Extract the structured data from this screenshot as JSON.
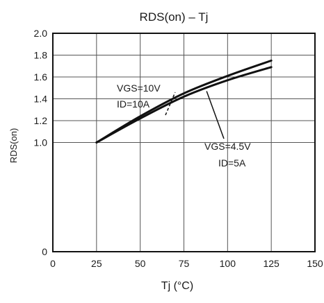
{
  "chart_data": {
    "type": "line",
    "title": "RDS(on)  –  Tj",
    "xlabel": "Tj   (°C)",
    "ylabel": "RDS(on)",
    "xlim": [
      0,
      150
    ],
    "ylim": [
      0,
      2.0
    ],
    "x_ticks": [
      0,
      25,
      50,
      75,
      100,
      125,
      150
    ],
    "x_tick_labels": [
      "0",
      "25",
      "50",
      "75",
      "100",
      "125",
      "150"
    ],
    "y_ticks": [
      0,
      1.0,
      1.2,
      1.4,
      1.6,
      1.8,
      2.0
    ],
    "y_tick_labels": [
      "0",
      "1.0",
      "1.2",
      "1.4",
      "1.6",
      "1.8",
      "2.0"
    ],
    "grid": true,
    "series": [
      {
        "name": "VGS=10V ID=10A",
        "x": [
          25,
          50,
          75,
          100,
          125
        ],
        "y": [
          1.0,
          1.24,
          1.45,
          1.61,
          1.75
        ]
      },
      {
        "name": "VGS=4.5V ID=5A",
        "x": [
          25,
          50,
          75,
          100,
          125
        ],
        "y": [
          1.0,
          1.22,
          1.42,
          1.57,
          1.69
        ]
      }
    ],
    "annotations": [
      {
        "lines": [
          "VGS=10V",
          "ID=10A"
        ],
        "x_data": 70,
        "y_data": 1.46
      },
      {
        "lines": [
          "VGS=4.5V",
          "ID=5A"
        ],
        "x_data": 88,
        "y_data": 1.47
      }
    ]
  }
}
